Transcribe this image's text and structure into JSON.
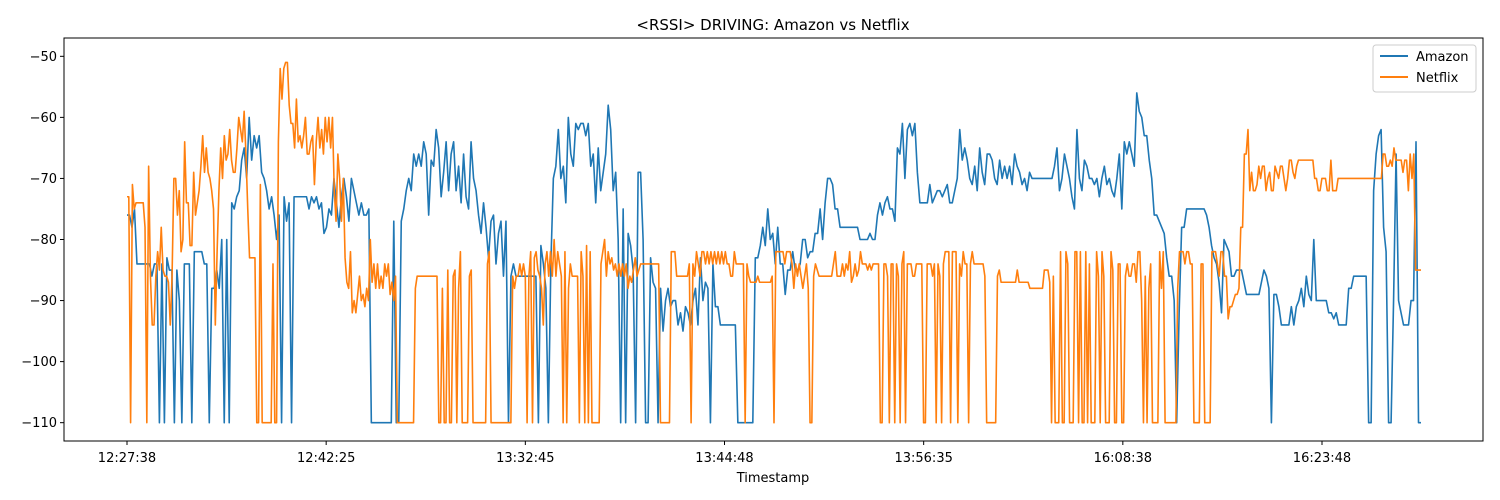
{
  "chart_data": {
    "type": "line",
    "title": "<RSSI> DRIVING: Amazon vs Netflix",
    "xlabel": "Timestamp",
    "ylabel": "",
    "ylim": [
      -113.0,
      -47.0
    ],
    "yticks": [
      -50,
      -60,
      -70,
      -80,
      -90,
      -100,
      -110
    ],
    "xtick_labels": [
      "12:27:38",
      "12:42:25",
      "13:32:45",
      "13:44:48",
      "13:56:35",
      "16:08:38",
      "16:23:48"
    ],
    "grid": false,
    "legend_position": "top-right",
    "series": [
      {
        "name": "Amazon",
        "color": "#1f77b4",
        "values": [
          -76,
          -76,
          -78,
          -75,
          -84,
          -84,
          -84,
          -84,
          -84,
          -84,
          -86,
          -84,
          -84,
          -110,
          -84,
          -110,
          -83,
          -85,
          -85,
          -110,
          -85,
          -90,
          -110,
          -84,
          -84,
          -84,
          -110,
          -82,
          -82,
          -82,
          -82,
          -84,
          -84,
          -110,
          -88,
          -88,
          -85,
          -88,
          -80,
          -110,
          -80,
          -110,
          -74,
          -75,
          -73,
          -72,
          -67,
          -65,
          -70,
          -60,
          -67,
          -63,
          -65,
          -63,
          -69,
          -70,
          -72,
          -75,
          -73,
          -76,
          -80,
          -76,
          -110,
          -73,
          -77,
          -74,
          -110,
          -73,
          -73,
          -73,
          -73,
          -73,
          -73,
          -75,
          -73,
          -74,
          -73,
          -75,
          -74,
          -79,
          -78,
          -75,
          -76,
          -70,
          -74,
          -78,
          -73,
          -70,
          -73,
          -77,
          -70,
          -72,
          -74,
          -76,
          -74,
          -76,
          -76,
          -75,
          -110,
          -110,
          -110,
          -110,
          -110,
          -110,
          -110,
          -110,
          -110,
          -77,
          -110,
          -110,
          -77,
          -75,
          -72,
          -70,
          -72,
          -66,
          -68,
          -66,
          -68,
          -64,
          -66,
          -76,
          -67,
          -68,
          -62,
          -65,
          -73,
          -69,
          -64,
          -72,
          -66,
          -64,
          -72,
          -68,
          -74,
          -66,
          -73,
          -75,
          -64,
          -70,
          -72,
          -76,
          -79,
          -74,
          -78,
          -83,
          -77,
          -76,
          -84,
          -79,
          -77,
          -86,
          -77,
          -110,
          -86,
          -84,
          -86,
          -86,
          -86,
          -86,
          -86,
          -86,
          -86,
          -86,
          -86,
          -110,
          -81,
          -84,
          -88,
          -110,
          -84,
          -70,
          -68,
          -62,
          -70,
          -68,
          -74,
          -60,
          -66,
          -68,
          -61,
          -62,
          -61,
          -61,
          -63,
          -61,
          -68,
          -66,
          -74,
          -65,
          -72,
          -69,
          -66,
          -58,
          -62,
          -72,
          -69,
          -80,
          -110,
          -75,
          -110,
          -79,
          -81,
          -85,
          -110,
          -69,
          -69,
          -80,
          -110,
          -110,
          -83,
          -87,
          -88,
          -110,
          -88,
          -95,
          -90,
          -88,
          -91,
          -90,
          -90,
          -94,
          -92,
          -95,
          -91,
          -92,
          -94,
          -90,
          -88,
          -94,
          -83,
          -90,
          -87,
          -88,
          -110,
          -84,
          -91,
          -91,
          -94,
          -94,
          -94,
          -94,
          -94,
          -94,
          -94,
          -110,
          -110,
          -110,
          -110,
          -110,
          -110,
          -110,
          -83,
          -83,
          -81,
          -78,
          -81,
          -75,
          -80,
          -79,
          -84,
          -78,
          -84,
          -84,
          -89,
          -85,
          -85,
          -82,
          -85,
          -85,
          -84,
          -80,
          -80,
          -83,
          -82,
          -82,
          -79,
          -79,
          -75,
          -80,
          -74,
          -70,
          -70,
          -71,
          -75,
          -75,
          -78,
          -78,
          -78,
          -78,
          -78,
          -78,
          -78,
          -78,
          -80,
          -80,
          -80,
          -80,
          -79,
          -80,
          -80,
          -76,
          -74,
          -76,
          -74,
          -73,
          -75,
          -75,
          -77,
          -65,
          -66,
          -61,
          -70,
          -62,
          -61,
          -63,
          -61,
          -69,
          -74,
          -74,
          -74,
          -74,
          -71,
          -74,
          -73,
          -72,
          -72,
          -73,
          -72,
          -71,
          -74,
          -74,
          -72,
          -70,
          -62,
          -67,
          -65,
          -67,
          -70,
          -71,
          -68,
          -72,
          -65,
          -69,
          -71,
          -66,
          -66,
          -67,
          -70,
          -71,
          -67,
          -70,
          -68,
          -70,
          -68,
          -71,
          -66,
          -68,
          -69,
          -71,
          -70,
          -72,
          -69,
          -70,
          -70,
          -70,
          -70,
          -70,
          -70,
          -70,
          -70,
          -70,
          -68,
          -65,
          -72,
          -70,
          -66,
          -68,
          -70,
          -73,
          -75,
          -62,
          -70,
          -72,
          -67,
          -68,
          -70,
          -70,
          -71,
          -70,
          -73,
          -70,
          -68,
          -71,
          -70,
          -72,
          -73,
          -70,
          -66,
          -75,
          -64,
          -66,
          -64,
          -66,
          -68,
          -56,
          -59,
          -60,
          -63,
          -63,
          -67,
          -70,
          -76,
          -76,
          -77,
          -78,
          -79,
          -83,
          -86,
          -86,
          -90,
          -110,
          -92,
          -78,
          -78,
          -75,
          -75,
          -75,
          -75,
          -75,
          -75,
          -75,
          -75,
          -76,
          -78,
          -81,
          -83,
          -84,
          -87,
          -92,
          -80,
          -81,
          -82,
          -86,
          -86,
          -85,
          -85,
          -85,
          -87,
          -89,
          -89,
          -89,
          -89,
          -89,
          -89,
          -87,
          -85,
          -86,
          -88,
          -110,
          -89,
          -89,
          -91,
          -94,
          -94,
          -94,
          -94,
          -91,
          -94,
          -91,
          -90,
          -88,
          -91,
          -86,
          -89,
          -90,
          -80,
          -90,
          -90,
          -90,
          -90,
          -90,
          -92,
          -92,
          -93,
          -92,
          -94,
          -94,
          -94,
          -94,
          -88,
          -88,
          -86,
          -86,
          -86,
          -86,
          -86,
          -86,
          -110,
          -110,
          -72,
          -66,
          -63,
          -62,
          -78,
          -82,
          -110,
          -110,
          -90,
          -66,
          -90,
          -92,
          -94,
          -94,
          -94,
          -90,
          -90,
          -64,
          -110,
          -110
        ]
      },
      {
        "name": "Netflix",
        "color": "#ff7f0e",
        "values": [
          -73,
          -73,
          -110,
          -71,
          -75,
          -74,
          -74,
          -74,
          -74,
          -74,
          -78,
          -110,
          -68,
          -86,
          -94,
          -94,
          -86,
          -82,
          -85,
          -78,
          -85,
          -86,
          -86,
          -87,
          -94,
          -86,
          -70,
          -70,
          -76,
          -72,
          -82,
          -80,
          -64,
          -74,
          -74,
          -81,
          -81,
          -69,
          -76,
          -74,
          -72,
          -68,
          -63,
          -69,
          -65,
          -69,
          -70,
          -72,
          -75,
          -94,
          -82,
          -72,
          -65,
          -70,
          -63,
          -67,
          -66,
          -62,
          -67,
          -69,
          -69,
          -65,
          -60,
          -62,
          -64,
          -59,
          -66,
          -75,
          -83,
          -83,
          -83,
          -83,
          -110,
          -110,
          -71,
          -110,
          -110,
          -110,
          -110,
          -110,
          -110,
          -84,
          -110,
          -110,
          -64,
          -52,
          -57,
          -52,
          -51,
          -51,
          -58,
          -61,
          -61,
          -65,
          -57,
          -64,
          -63,
          -65,
          -63,
          -60,
          -66,
          -66,
          -64,
          -63,
          -71,
          -64,
          -60,
          -65,
          -62,
          -66,
          -60,
          -64,
          -60,
          -65,
          -60,
          -72,
          -77,
          -66,
          -70,
          -77,
          -70,
          -83,
          -87,
          -88,
          -82,
          -92,
          -90,
          -92,
          -89,
          -86,
          -90,
          -89,
          -91,
          -88,
          -90,
          -80,
          -87,
          -84,
          -88,
          -84,
          -88,
          -86,
          -88,
          -84,
          -86,
          -84,
          -89,
          -87,
          -90,
          -86,
          -110,
          -110,
          -110,
          -110,
          -110,
          -110,
          -110,
          -110,
          -110,
          -110,
          -88,
          -86,
          -86,
          -86,
          -86,
          -86,
          -86,
          -86,
          -86,
          -86,
          -86,
          -86,
          -86,
          -110,
          -110,
          -88,
          -110,
          -110,
          -85,
          -110,
          -110,
          -86,
          -85,
          -110,
          -88,
          -82,
          -110,
          -110,
          -110,
          -110,
          -86,
          -85,
          -110,
          -110,
          -110,
          -110,
          -110,
          -110,
          -110,
          -110,
          -84,
          -82,
          -110,
          -110,
          -110,
          -110,
          -110,
          -110,
          -110,
          -110,
          -110,
          -110,
          -110,
          -110,
          -86,
          -88,
          -86,
          -86,
          -84,
          -86,
          -84,
          -86,
          -110,
          -86,
          -82,
          -110,
          -83,
          -82,
          -85,
          -86,
          -88,
          -94,
          -84,
          -82,
          -86,
          -82,
          -86,
          -80,
          -86,
          -82,
          -84,
          -86,
          -110,
          -82,
          -110,
          -88,
          -84,
          -86,
          -86,
          -86,
          -86,
          -110,
          -82,
          -86,
          -110,
          -81,
          -110,
          -82,
          -110,
          -110,
          -110,
          -110,
          -110,
          -84,
          -82,
          -80,
          -86,
          -82,
          -84,
          -83,
          -85,
          -84,
          -86,
          -84,
          -86,
          -84,
          -86,
          -84,
          -88,
          -86,
          -87,
          -85,
          -83,
          -86,
          -85,
          -84,
          -84,
          -84,
          -84,
          -84,
          -84,
          -84,
          -84,
          -84,
          -84,
          -84,
          -110,
          -110,
          -110,
          -110,
          -110,
          -110,
          -82,
          -82,
          -82,
          -86,
          -86,
          -86,
          -86,
          -86,
          -86,
          -86,
          -84,
          -110,
          -84,
          -86,
          -82,
          -84,
          -86,
          -82,
          -82,
          -84,
          -82,
          -84,
          -82,
          -84,
          -82,
          -84,
          -82,
          -84,
          -82,
          -84,
          -82,
          -84,
          -84,
          -86,
          -86,
          -82,
          -84,
          -84,
          -84,
          -84,
          -84,
          -110,
          -84,
          -86,
          -87,
          -87,
          -87,
          -87,
          -86,
          -87,
          -87,
          -87,
          -87,
          -87,
          -87,
          -87,
          -86,
          -110,
          -82,
          -82,
          -82,
          -82,
          -82,
          -84,
          -82,
          -82,
          -82,
          -84,
          -88,
          -84,
          -86,
          -84,
          -86,
          -88,
          -86,
          -84,
          -88,
          -110,
          -110,
          -86,
          -84,
          -85,
          -86,
          -86,
          -86,
          -86,
          -86,
          -86,
          -86,
          -86,
          -84,
          -82,
          -86,
          -86,
          -86,
          -84,
          -86,
          -84,
          -85,
          -82,
          -87,
          -86,
          -84,
          -86,
          -85,
          -82,
          -84,
          -84,
          -84,
          -85,
          -84,
          -85,
          -84,
          -84,
          -84,
          -84,
          -110,
          -110,
          -84,
          -84,
          -86,
          -110,
          -84,
          -84,
          -110,
          -84,
          -86,
          -110,
          -84,
          -82,
          -110,
          -84,
          -84,
          -84,
          -86,
          -86,
          -84,
          -84,
          -84,
          -84,
          -110,
          -110,
          -84,
          -84,
          -84,
          -86,
          -84,
          -110,
          -84,
          -86,
          -110,
          -84,
          -82,
          -82,
          -82,
          -110,
          -82,
          -82,
          -82,
          -110,
          -84,
          -86,
          -82,
          -84,
          -84,
          -110,
          -84,
          -82,
          -84,
          -84,
          -84,
          -84,
          -84,
          -84,
          -86,
          -110,
          -110,
          -110,
          -110,
          -110,
          -110,
          -86,
          -85,
          -87,
          -87,
          -87,
          -87,
          -87,
          -87,
          -87,
          -87,
          -87,
          -85,
          -87,
          -87,
          -87,
          -87,
          -87,
          -87,
          -88,
          -88,
          -88,
          -88,
          -88,
          -88,
          -88,
          -88,
          -85,
          -85,
          -85,
          -87,
          -110,
          -86,
          -110,
          -110,
          -110,
          -82,
          -110,
          -110,
          -82,
          -84,
          -110,
          -110,
          -110,
          -82,
          -82,
          -110,
          -82,
          -110,
          -110,
          -82,
          -110,
          -84,
          -110,
          -110,
          -110,
          -82,
          -86,
          -110,
          -82,
          -86,
          -110,
          -110,
          -110,
          -82,
          -85,
          -110,
          -110,
          -84,
          -84,
          -110,
          -110,
          -86,
          -84,
          -86,
          -86,
          -84,
          -84,
          -87,
          -82,
          -82,
          -90,
          -110,
          -86,
          -110,
          -88,
          -84,
          -110,
          -110,
          -110,
          -110,
          -82,
          -88,
          -82,
          -110,
          -110,
          -110,
          -110,
          -110,
          -110,
          -110,
          -88,
          -82,
          -82,
          -82,
          -84,
          -82,
          -82,
          -84,
          -84,
          -110,
          -110,
          -110,
          -110,
          -84,
          -84,
          -110,
          -110,
          -110,
          -110,
          -82,
          -82,
          -82,
          -84,
          -86,
          -82,
          -82,
          -86,
          -86,
          -93,
          -91,
          -91,
          -90,
          -89,
          -89,
          -88,
          -78,
          -78,
          -66,
          -66,
          -62,
          -72,
          -69,
          -72,
          -72,
          -71,
          -68,
          -70,
          -68,
          -68,
          -72,
          -70,
          -69,
          -72,
          -72,
          -68,
          -69,
          -70,
          -68,
          -68,
          -70,
          -72,
          -70,
          -67,
          -67,
          -69,
          -70,
          -68,
          -67,
          -67,
          -67,
          -67,
          -67,
          -67,
          -67,
          -67,
          -67,
          -70,
          -70,
          -72,
          -72,
          -70,
          -70,
          -70,
          -72,
          -72,
          -67,
          -72,
          -72,
          -72,
          -70,
          -70,
          -70,
          -70,
          -70,
          -70,
          -70,
          -70,
          -70,
          -70,
          -70,
          -70,
          -70,
          -70,
          -70,
          -70,
          -70,
          -70,
          -70,
          -70,
          -70,
          -70,
          -70,
          -70,
          -70,
          -66,
          -66,
          -68,
          -68,
          -67,
          -68,
          -65,
          -67,
          -67,
          -67,
          -67,
          -69,
          -67,
          -67,
          -72,
          -66,
          -70,
          -66,
          -85,
          -85,
          -85,
          -85
        ]
      }
    ]
  }
}
